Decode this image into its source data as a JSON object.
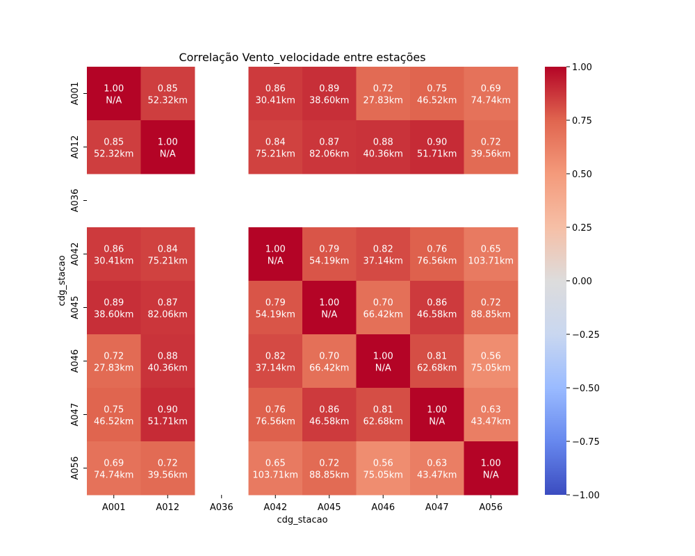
{
  "chart_data": {
    "type": "heatmap",
    "title": "Correlação Vento_velocidade entre estações",
    "xlabel": "cdg_stacao",
    "ylabel": "cdg_stacao",
    "x_categories": [
      "A001",
      "A012",
      "A036",
      "A042",
      "A045",
      "A046",
      "A047",
      "A056"
    ],
    "y_categories": [
      "A001",
      "A012",
      "A036",
      "A042",
      "A045",
      "A046",
      "A047",
      "A056"
    ],
    "values": [
      [
        1.0,
        0.85,
        null,
        0.86,
        0.89,
        0.72,
        0.75,
        0.69
      ],
      [
        0.85,
        1.0,
        null,
        0.84,
        0.87,
        0.88,
        0.9,
        0.72
      ],
      [
        null,
        null,
        null,
        null,
        null,
        null,
        null,
        null
      ],
      [
        0.86,
        0.84,
        null,
        1.0,
        0.79,
        0.82,
        0.76,
        0.65
      ],
      [
        0.89,
        0.87,
        null,
        0.79,
        1.0,
        0.7,
        0.86,
        0.72
      ],
      [
        0.72,
        0.88,
        null,
        0.82,
        0.7,
        1.0,
        0.81,
        0.56
      ],
      [
        0.75,
        0.9,
        null,
        0.76,
        0.86,
        0.81,
        1.0,
        0.63
      ],
      [
        0.69,
        0.72,
        null,
        0.65,
        0.72,
        0.56,
        0.63,
        1.0
      ]
    ],
    "annotations": [
      [
        "1.00\nN/A",
        "0.85\n52.32km",
        "",
        "0.86\n30.41km",
        "0.89\n38.60km",
        "0.72\n27.83km",
        "0.75\n46.52km",
        "0.69\n74.74km"
      ],
      [
        "0.85\n52.32km",
        "1.00\nN/A",
        "",
        "0.84\n75.21km",
        "0.87\n82.06km",
        "0.88\n40.36km",
        "0.90\n51.71km",
        "0.72\n39.56km"
      ],
      [
        "",
        "",
        "",
        "",
        "",
        "",
        "",
        ""
      ],
      [
        "0.86\n30.41km",
        "0.84\n75.21km",
        "",
        "1.00\nN/A",
        "0.79\n54.19km",
        "0.82\n37.14km",
        "0.76\n76.56km",
        "0.65\n103.71km"
      ],
      [
        "0.89\n38.60km",
        "0.87\n82.06km",
        "",
        "0.79\n54.19km",
        "1.00\nN/A",
        "0.70\n66.42km",
        "0.86\n46.58km",
        "0.72\n88.85km"
      ],
      [
        "0.72\n27.83km",
        "0.88\n40.36km",
        "",
        "0.82\n37.14km",
        "0.70\n66.42km",
        "1.00\nN/A",
        "0.81\n62.68km",
        "0.56\n75.05km"
      ],
      [
        "0.75\n46.52km",
        "0.90\n51.71km",
        "",
        "0.76\n76.56km",
        "0.86\n46.58km",
        "0.81\n62.68km",
        "1.00\nN/A",
        "0.63\n43.47km"
      ],
      [
        "0.69\n74.74km",
        "0.72\n39.56km",
        "",
        "0.65\n103.71km",
        "0.72\n88.85km",
        "0.56\n75.05km",
        "0.63\n43.47km",
        "1.00\nN/A"
      ]
    ],
    "colormap": "coolwarm",
    "vmin": -1.0,
    "vmax": 1.0,
    "colorbar_ticks": [
      1.0,
      0.75,
      0.5,
      0.25,
      0.0,
      -0.25,
      -0.5,
      -0.75,
      -1.0
    ],
    "colorbar_tick_labels": [
      "1.00",
      "0.75",
      "0.50",
      "0.25",
      "0.00",
      "−0.25",
      "−0.50",
      "−0.75",
      "−1.00"
    ],
    "colormap_stops": [
      "#3b4cc0",
      "#6788ee",
      "#9abbff",
      "#c9d7f0",
      "#dddcdc",
      "#f6bfa6",
      "#f49a7b",
      "#e0654f",
      "#b40426"
    ]
  }
}
